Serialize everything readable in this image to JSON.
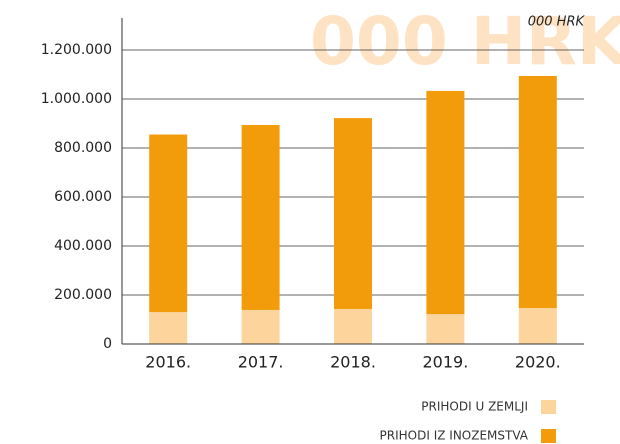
{
  "chart_data": {
    "type": "stacked_bar",
    "watermark": "000 HRK",
    "unit": "000 HRK",
    "categories": [
      "2016.",
      "2017.",
      "2018.",
      "2019.",
      "2020."
    ],
    "series": [
      {
        "name": "PRIHODI U ZEMLJI",
        "color": "#fdd49c",
        "values": [
          130000,
          139000,
          143000,
          122000,
          147000
        ]
      },
      {
        "name": "PRIHODI IZ INOZEMSTVA",
        "color": "#f39c0b",
        "values": [
          725000,
          755000,
          779000,
          911000,
          947000
        ]
      }
    ],
    "ylim": [
      0,
      1300000
    ],
    "yticks": [
      0,
      {
        "value": 200000,
        "label": "200.000"
      },
      {
        "value": 400000,
        "label": "400.000"
      },
      {
        "value": 600000,
        "label": "600.000"
      },
      {
        "value": 800000,
        "label": "800.000"
      },
      {
        "value": 1000000,
        "label": "1.000.000"
      },
      {
        "value": 1200000,
        "label": "1.200.000"
      }
    ],
    "grid": true,
    "legend": "bottom-right"
  }
}
